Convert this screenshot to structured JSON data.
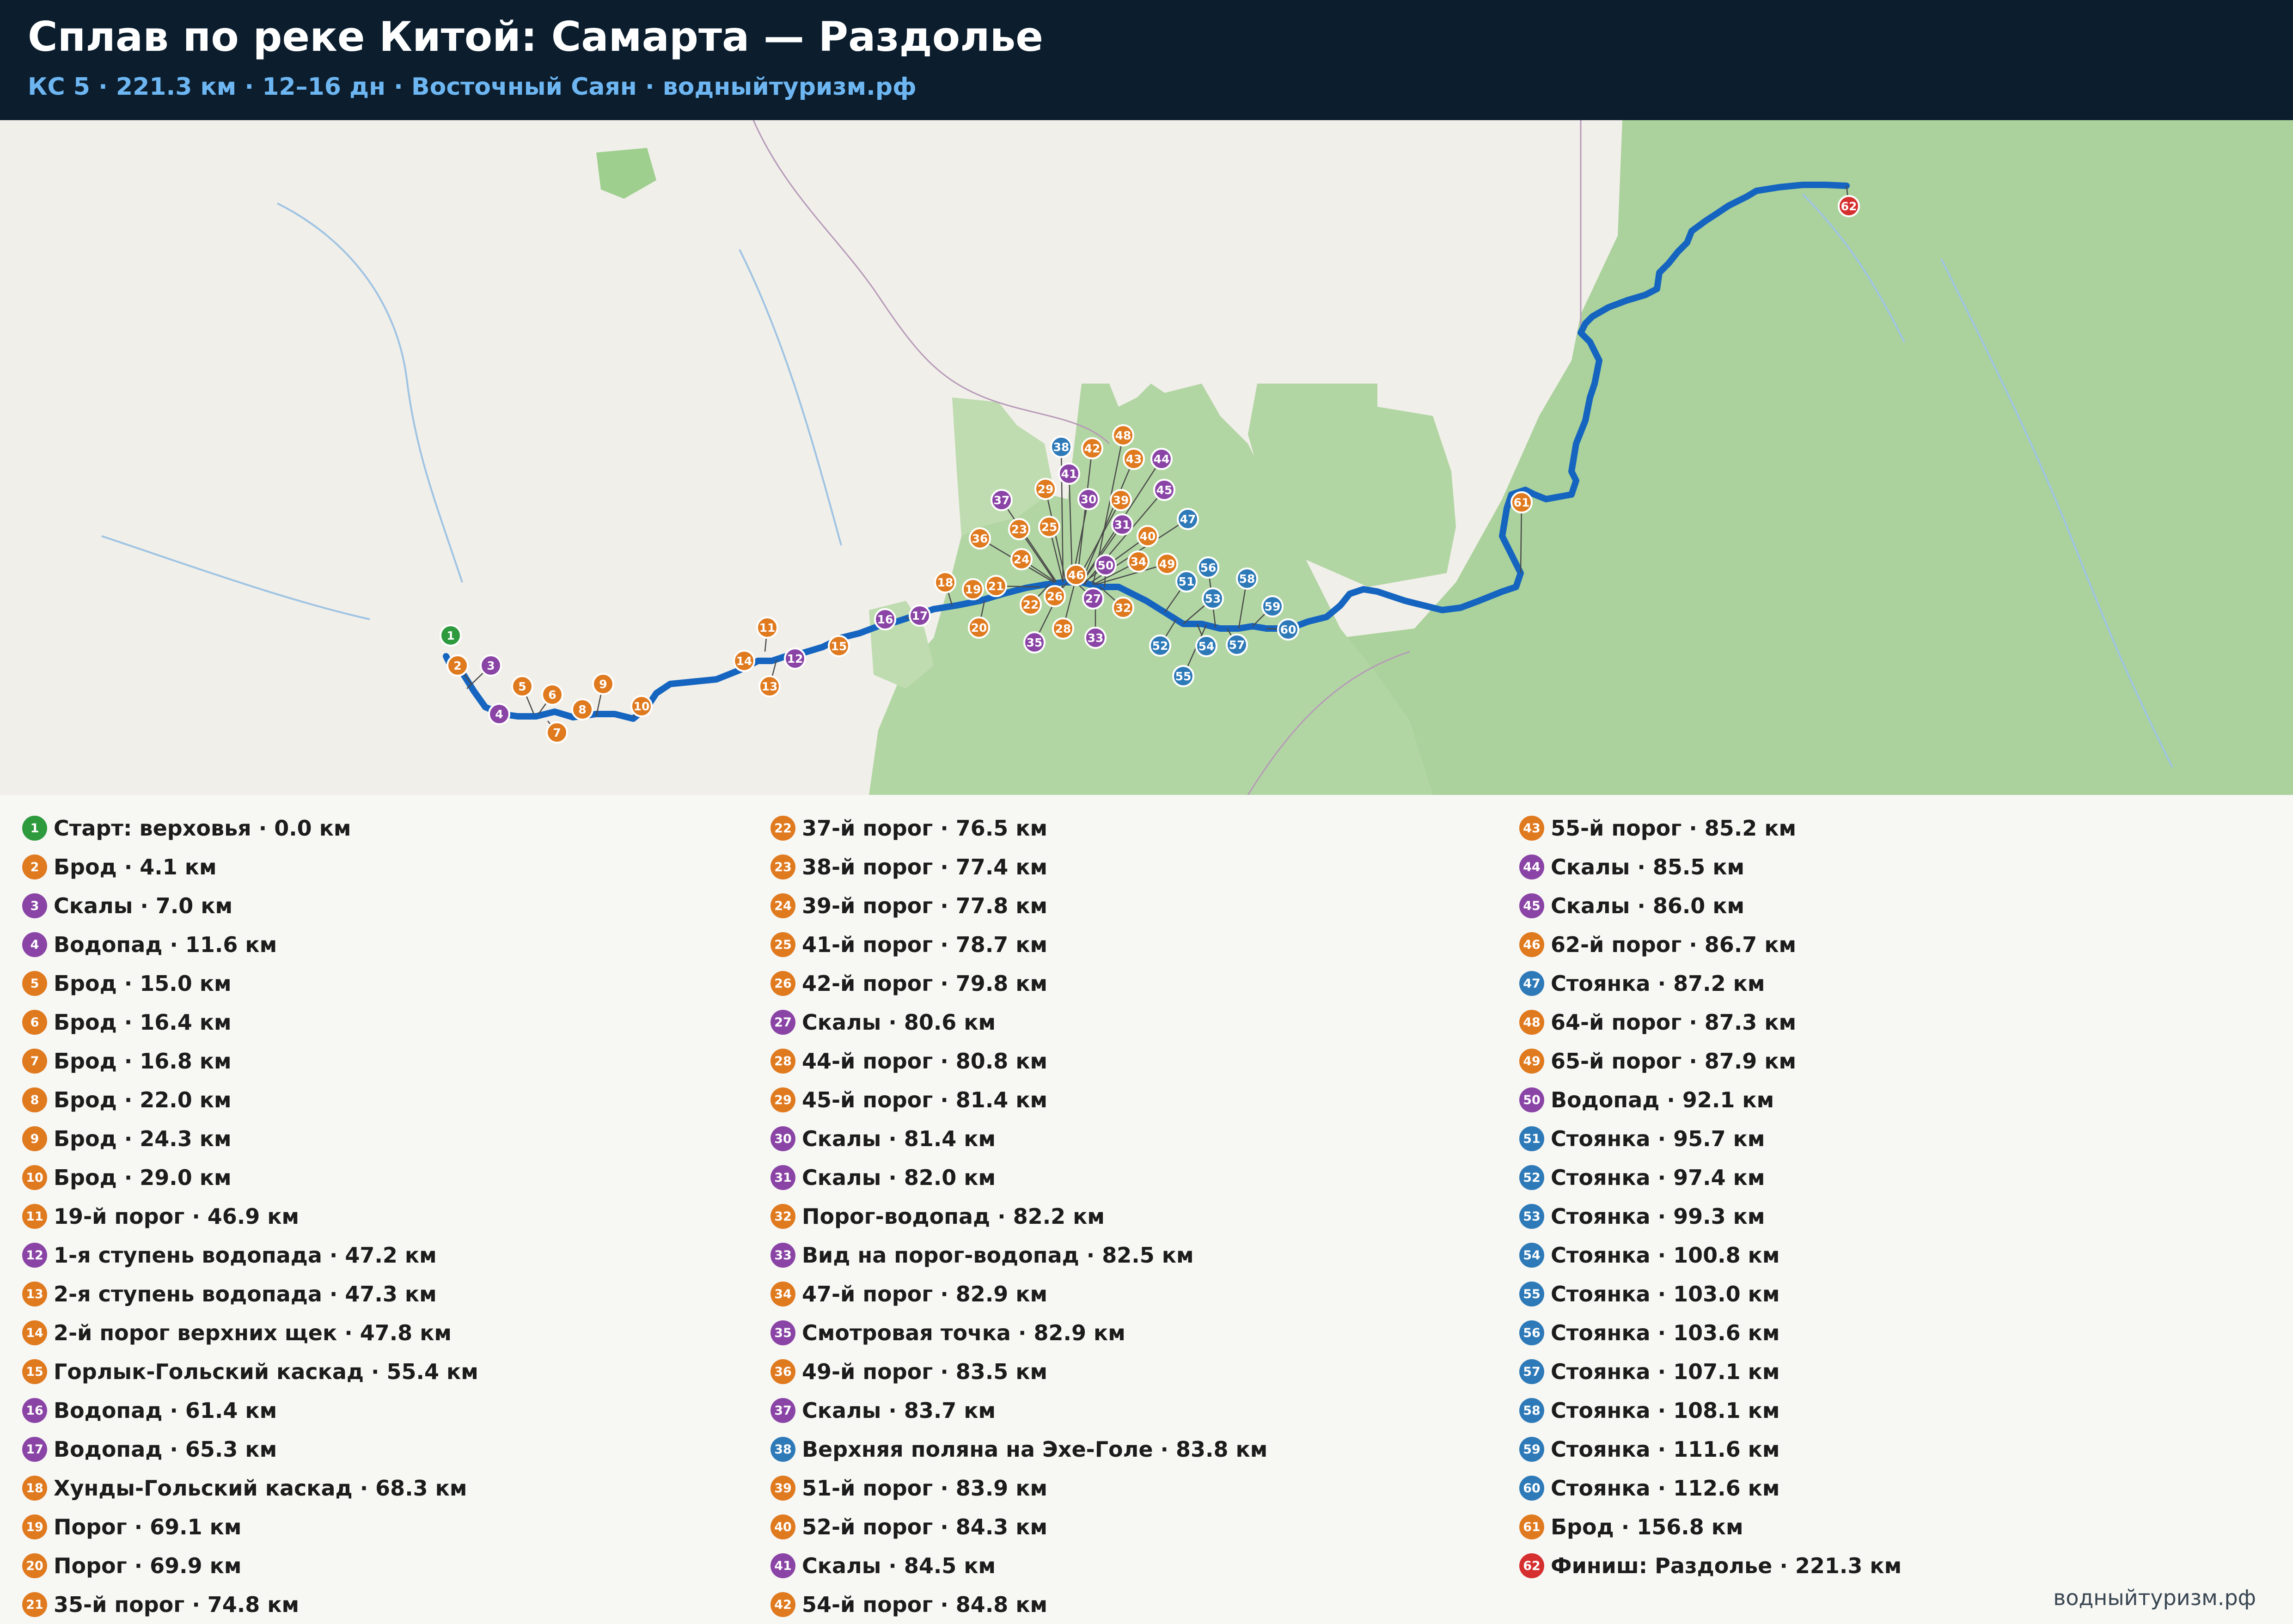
{
  "header": {
    "title": "Сплав по реке Китой: Самарта — Раздолье",
    "subtitle": "КС 5  ·  221.3 км  ·  12–16 дн  ·  Восточный Саян  ·  водныйтуризм.рф"
  },
  "colors": {
    "start": "#2e9a3e",
    "rapid": "#e07a1f",
    "sight": "#8a44a6",
    "camp": "#2e7ab8",
    "finish": "#d62f2f",
    "route": "#1565c0",
    "forest": "#a9d29a",
    "terrain": "#f1efea",
    "header_bg": "#0c1e2e"
  },
  "points": [
    {
      "n": "1",
      "label": "Старт: верховья · 0.0 км",
      "kind": "start"
    },
    {
      "n": "2",
      "label": "Брод · 4.1 км",
      "kind": "rapid"
    },
    {
      "n": "3",
      "label": "Скалы · 7.0 км",
      "kind": "sight"
    },
    {
      "n": "4",
      "label": "Водопад · 11.6 км",
      "kind": "sight"
    },
    {
      "n": "5",
      "label": "Брод · 15.0 км",
      "kind": "rapid"
    },
    {
      "n": "6",
      "label": "Брод · 16.4 км",
      "kind": "rapid"
    },
    {
      "n": "7",
      "label": "Брод · 16.8 км",
      "kind": "rapid"
    },
    {
      "n": "8",
      "label": "Брод · 22.0 км",
      "kind": "rapid"
    },
    {
      "n": "9",
      "label": "Брод · 24.3 км",
      "kind": "rapid"
    },
    {
      "n": "10",
      "label": "Брод · 29.0 км",
      "kind": "rapid"
    },
    {
      "n": "11",
      "label": "19-й порог · 46.9 км",
      "kind": "rapid"
    },
    {
      "n": "12",
      "label": "1-я ступень водопада · 47.2 км",
      "kind": "sight"
    },
    {
      "n": "13",
      "label": "2-я ступень водопада · 47.3 км",
      "kind": "rapid"
    },
    {
      "n": "14",
      "label": "2-й порог верхних щек · 47.8 км",
      "kind": "rapid"
    },
    {
      "n": "15",
      "label": "Горлык-Гольский каскад · 55.4 км",
      "kind": "rapid"
    },
    {
      "n": "16",
      "label": "Водопад · 61.4 км",
      "kind": "sight"
    },
    {
      "n": "17",
      "label": "Водопад · 65.3 км",
      "kind": "sight"
    },
    {
      "n": "18",
      "label": "Хунды-Гольский каскад · 68.3 км",
      "kind": "rapid"
    },
    {
      "n": "19",
      "label": "Порог · 69.1 км",
      "kind": "rapid"
    },
    {
      "n": "20",
      "label": "Порог · 69.9 км",
      "kind": "rapid"
    },
    {
      "n": "21",
      "label": "35-й порог · 74.8 км",
      "kind": "rapid"
    },
    {
      "n": "22",
      "label": "37-й порог · 76.5 км",
      "kind": "rapid"
    },
    {
      "n": "23",
      "label": "38-й порог · 77.4 км",
      "kind": "rapid"
    },
    {
      "n": "24",
      "label": "39-й порог · 77.8 км",
      "kind": "rapid"
    },
    {
      "n": "25",
      "label": "41-й порог · 78.7 км",
      "kind": "rapid"
    },
    {
      "n": "26",
      "label": "42-й порог · 79.8 км",
      "kind": "rapid"
    },
    {
      "n": "27",
      "label": "Скалы · 80.6 км",
      "kind": "sight"
    },
    {
      "n": "28",
      "label": "44-й порог · 80.8 км",
      "kind": "rapid"
    },
    {
      "n": "29",
      "label": "45-й порог · 81.4 км",
      "kind": "rapid"
    },
    {
      "n": "30",
      "label": "Скалы · 81.4 км",
      "kind": "sight"
    },
    {
      "n": "31",
      "label": "Скалы · 82.0 км",
      "kind": "sight"
    },
    {
      "n": "32",
      "label": "Порог-водопад · 82.2 км",
      "kind": "rapid"
    },
    {
      "n": "33",
      "label": "Вид на порог-водопад · 82.5 км",
      "kind": "sight"
    },
    {
      "n": "34",
      "label": "47-й порог · 82.9 км",
      "kind": "rapid"
    },
    {
      "n": "35",
      "label": "Смотровая точка · 82.9 км",
      "kind": "sight"
    },
    {
      "n": "36",
      "label": "49-й порог · 83.5 км",
      "kind": "rapid"
    },
    {
      "n": "37",
      "label": "Скалы · 83.7 км",
      "kind": "sight"
    },
    {
      "n": "38",
      "label": "Верхняя поляна на Эхе-Голе · 83.8 км",
      "kind": "camp"
    },
    {
      "n": "39",
      "label": "51-й порог · 83.9 км",
      "kind": "rapid"
    },
    {
      "n": "40",
      "label": "52-й порог · 84.3 км",
      "kind": "rapid"
    },
    {
      "n": "41",
      "label": "Скалы · 84.5 км",
      "kind": "sight"
    },
    {
      "n": "42",
      "label": "54-й порог · 84.8 км",
      "kind": "rapid"
    },
    {
      "n": "43",
      "label": "55-й порог · 85.2 км",
      "kind": "rapid"
    },
    {
      "n": "44",
      "label": "Скалы · 85.5 км",
      "kind": "sight"
    },
    {
      "n": "45",
      "label": "Скалы · 86.0 км",
      "kind": "sight"
    },
    {
      "n": "46",
      "label": "62-й порог · 86.7 км",
      "kind": "rapid"
    },
    {
      "n": "47",
      "label": "Стоянка · 87.2 км",
      "kind": "camp"
    },
    {
      "n": "48",
      "label": "64-й порог · 87.3 км",
      "kind": "rapid"
    },
    {
      "n": "49",
      "label": "65-й порог · 87.9 км",
      "kind": "rapid"
    },
    {
      "n": "50",
      "label": "Водопад · 92.1 км",
      "kind": "sight"
    },
    {
      "n": "51",
      "label": "Стоянка · 95.7 км",
      "kind": "camp"
    },
    {
      "n": "52",
      "label": "Стоянка · 97.4 км",
      "kind": "camp"
    },
    {
      "n": "53",
      "label": "Стоянка · 99.3 км",
      "kind": "camp"
    },
    {
      "n": "54",
      "label": "Стоянка · 100.8 км",
      "kind": "camp"
    },
    {
      "n": "55",
      "label": "Стоянка · 103.0 км",
      "kind": "camp"
    },
    {
      "n": "56",
      "label": "Стоянка · 103.6 км",
      "kind": "camp"
    },
    {
      "n": "57",
      "label": "Стоянка · 107.1 км",
      "kind": "camp"
    },
    {
      "n": "58",
      "label": "Стоянка · 108.1 км",
      "kind": "camp"
    },
    {
      "n": "59",
      "label": "Стоянка · 111.6 км",
      "kind": "camp"
    },
    {
      "n": "60",
      "label": "Стоянка · 112.6 км",
      "kind": "camp"
    },
    {
      "n": "61",
      "label": "Брод · 156.8 км",
      "kind": "rapid"
    },
    {
      "n": "62",
      "label": "Финиш: Раздолье · 221.3 км",
      "kind": "finish"
    }
  ],
  "footer": {
    "text": "водныйтуризм.рф"
  }
}
